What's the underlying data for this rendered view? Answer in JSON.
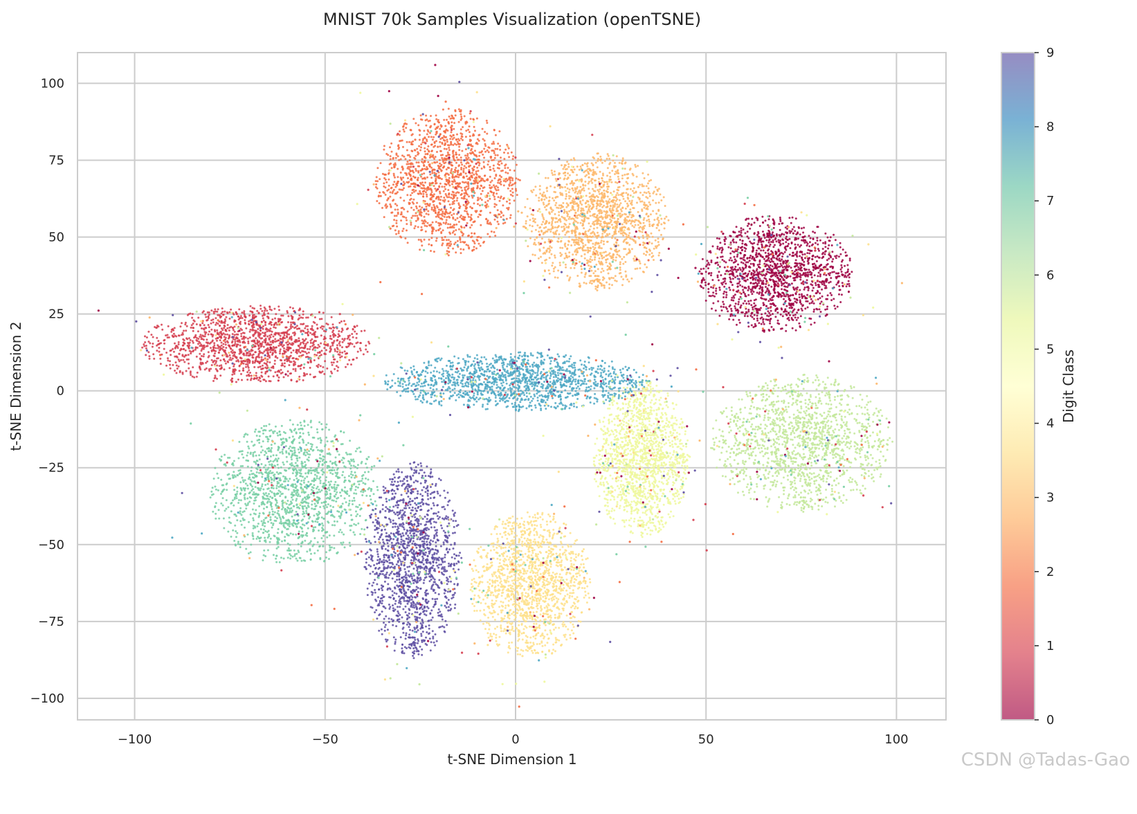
{
  "chart_data": {
    "type": "scatter",
    "title": "MNIST 70k Samples Visualization (openTSNE)",
    "xlabel": "t-SNE Dimension 1",
    "ylabel": "t-SNE Dimension 2",
    "xlim": [
      -115,
      113
    ],
    "ylim": [
      -107,
      110
    ],
    "x_ticks": [
      -100,
      -50,
      0,
      50,
      100
    ],
    "y_ticks": [
      -100,
      -75,
      -50,
      -25,
      0,
      25,
      50,
      75,
      100
    ],
    "x_tick_labels": [
      "−100",
      "−50",
      "0",
      "50",
      "100"
    ],
    "y_tick_labels": [
      "−100",
      "−75",
      "−50",
      "−25",
      "0",
      "25",
      "50",
      "75",
      "100"
    ],
    "grid": true,
    "colorbar": {
      "label": "Digit Class",
      "range": [
        0,
        9
      ],
      "ticks": [
        0,
        1,
        2,
        3,
        4,
        5,
        6,
        7,
        8,
        9
      ],
      "tick_labels": [
        "0",
        "1",
        "2",
        "3",
        "4",
        "5",
        "6",
        "7",
        "8",
        "9"
      ],
      "colormap": "Spectral",
      "colors": [
        "#9e0142",
        "#d53e4f",
        "#f46d43",
        "#fdae61",
        "#fee08b",
        "#ffffbf",
        "#e6f598",
        "#abdda4",
        "#66c2a5",
        "#3288bd",
        "#5e4fa2"
      ]
    },
    "clusters": [
      {
        "label": 0,
        "color": "#9e0142",
        "center": [
          68,
          38
        ],
        "spread": [
          13,
          12
        ]
      },
      {
        "label": 1,
        "color": "#d53e4f",
        "center": [
          -68,
          15
        ],
        "spread": [
          19,
          8
        ]
      },
      {
        "label": 2,
        "color": "#f46d43",
        "center": [
          -18,
          68
        ],
        "spread": [
          12,
          15
        ]
      },
      {
        "label": 3,
        "color": "#fdb76a",
        "center": [
          21,
          55
        ],
        "spread": [
          12,
          14
        ]
      },
      {
        "label": 4,
        "color": "#fee08b",
        "center": [
          4,
          -63
        ],
        "spread": [
          10,
          15
        ]
      },
      {
        "label": 5,
        "color": "#eef89c",
        "center": [
          33,
          -22
        ],
        "spread": [
          8,
          16
        ]
      },
      {
        "label": 6,
        "color": "#c3e89a",
        "center": [
          75,
          -17
        ],
        "spread": [
          15,
          14
        ]
      },
      {
        "label": 7,
        "color": "#78cfa4",
        "center": [
          -58,
          -33
        ],
        "spread": [
          14,
          15
        ]
      },
      {
        "label": 8,
        "color": "#4fa8c4",
        "center": [
          0,
          3
        ],
        "spread": [
          22,
          6
        ]
      },
      {
        "label": 9,
        "color": "#5e4fa2",
        "center": [
          -27,
          -55
        ],
        "spread": [
          8,
          20
        ]
      }
    ]
  },
  "watermark": "CSDN @Tadas-Gao"
}
